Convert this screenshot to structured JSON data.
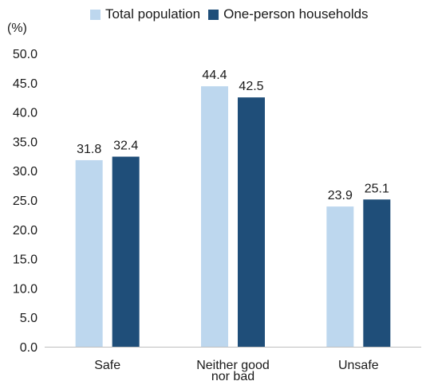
{
  "chart_data": {
    "type": "bar",
    "unit_label": "(%)",
    "categories": [
      [
        "Safe"
      ],
      [
        "Neither good",
        "nor bad"
      ],
      [
        "Unsafe"
      ]
    ],
    "series": [
      {
        "name": "Total population",
        "color": "#bdd7ee",
        "values": [
          31.8,
          44.4,
          23.9
        ]
      },
      {
        "name": "One-person households",
        "color": "#1f4e79",
        "values": [
          32.4,
          42.5,
          25.1
        ]
      }
    ],
    "ylim": [
      0,
      50
    ],
    "yticks": [
      "0.0",
      "5.0",
      "10.0",
      "15.0",
      "20.0",
      "25.0",
      "30.0",
      "35.0",
      "40.0",
      "45.0",
      "50.0"
    ],
    "data_labels": [
      [
        "31.8",
        "44.4",
        "23.9"
      ],
      [
        "32.4",
        "42.5",
        "25.1"
      ]
    ],
    "grid": false,
    "legend_position": "top"
  }
}
